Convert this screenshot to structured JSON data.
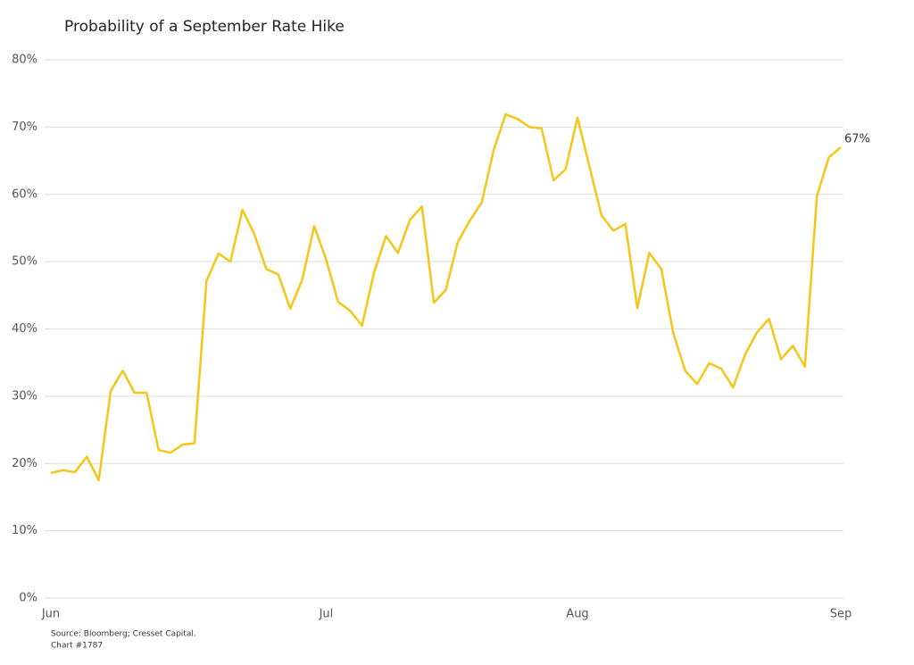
{
  "chart_data": {
    "type": "line",
    "title": "Probability of a September Rate Hike",
    "categories": [
      "Jun",
      null,
      null,
      null,
      null,
      null,
      null,
      null,
      null,
      null,
      null,
      null,
      null,
      null,
      null,
      null,
      null,
      null,
      null,
      null,
      null,
      null,
      null,
      "Jul",
      null,
      null,
      null,
      null,
      null,
      null,
      null,
      null,
      null,
      null,
      null,
      null,
      null,
      null,
      null,
      null,
      null,
      null,
      null,
      null,
      "Aug",
      null,
      null,
      null,
      null,
      null,
      null,
      null,
      null,
      null,
      null,
      null,
      null,
      null,
      null,
      null,
      null,
      null,
      null,
      null,
      null,
      null,
      "Sep"
    ],
    "series": [
      {
        "name": "Probability",
        "color": "#f5c518",
        "values": [
          18.6,
          19.0,
          18.7,
          21.0,
          17.5,
          30.8,
          33.8,
          30.5,
          30.5,
          22.0,
          21.6,
          22.8,
          23.0,
          47.1,
          51.2,
          50.0,
          57.7,
          54.1,
          48.9,
          48.1,
          43.0,
          47.3,
          55.3,
          50.3,
          44.0,
          42.7,
          40.5,
          48.4,
          53.8,
          51.3,
          56.2,
          58.2,
          43.9,
          45.8,
          52.9,
          56.1,
          58.8,
          66.6,
          71.9,
          71.2,
          70.0,
          69.8,
          62.1,
          63.7,
          71.4,
          64.1,
          56.9,
          54.6,
          55.6,
          43.1,
          51.3,
          48.9,
          39.4,
          33.8,
          31.8,
          34.9,
          34.1,
          31.3,
          36.2,
          39.5,
          41.5,
          35.5,
          37.5,
          34.4,
          59.7,
          65.5,
          67.0
        ],
        "value_labels": [
          null,
          null,
          null,
          null,
          null,
          null,
          null,
          null,
          null,
          null,
          null,
          null,
          null,
          null,
          null,
          null,
          null,
          null,
          null,
          null,
          null,
          null,
          null,
          null,
          null,
          null,
          null,
          null,
          null,
          null,
          null,
          null,
          null,
          null,
          null,
          null,
          null,
          null,
          null,
          null,
          null,
          null,
          null,
          null,
          null,
          null,
          null,
          null,
          null,
          null,
          null,
          null,
          null,
          null,
          null,
          null,
          null,
          null,
          null,
          null,
          null,
          null,
          null,
          null,
          null,
          null,
          "67%"
        ]
      }
    ],
    "ylim": [
      0,
      80
    ],
    "yticks": [
      {
        "value": 0,
        "label": "0%"
      },
      {
        "value": 10,
        "label": "10%"
      },
      {
        "value": 20,
        "label": "20%"
      },
      {
        "value": 30,
        "label": "30%"
      },
      {
        "value": 40,
        "label": "40%"
      },
      {
        "value": 50,
        "label": "50%"
      },
      {
        "value": 60,
        "label": "60%"
      },
      {
        "value": 70,
        "label": "70%"
      },
      {
        "value": 80,
        "label": "80%"
      }
    ],
    "grid": true,
    "source": "Source: Bloomberg; Cresset Capital.",
    "note": "Chart #1787"
  }
}
